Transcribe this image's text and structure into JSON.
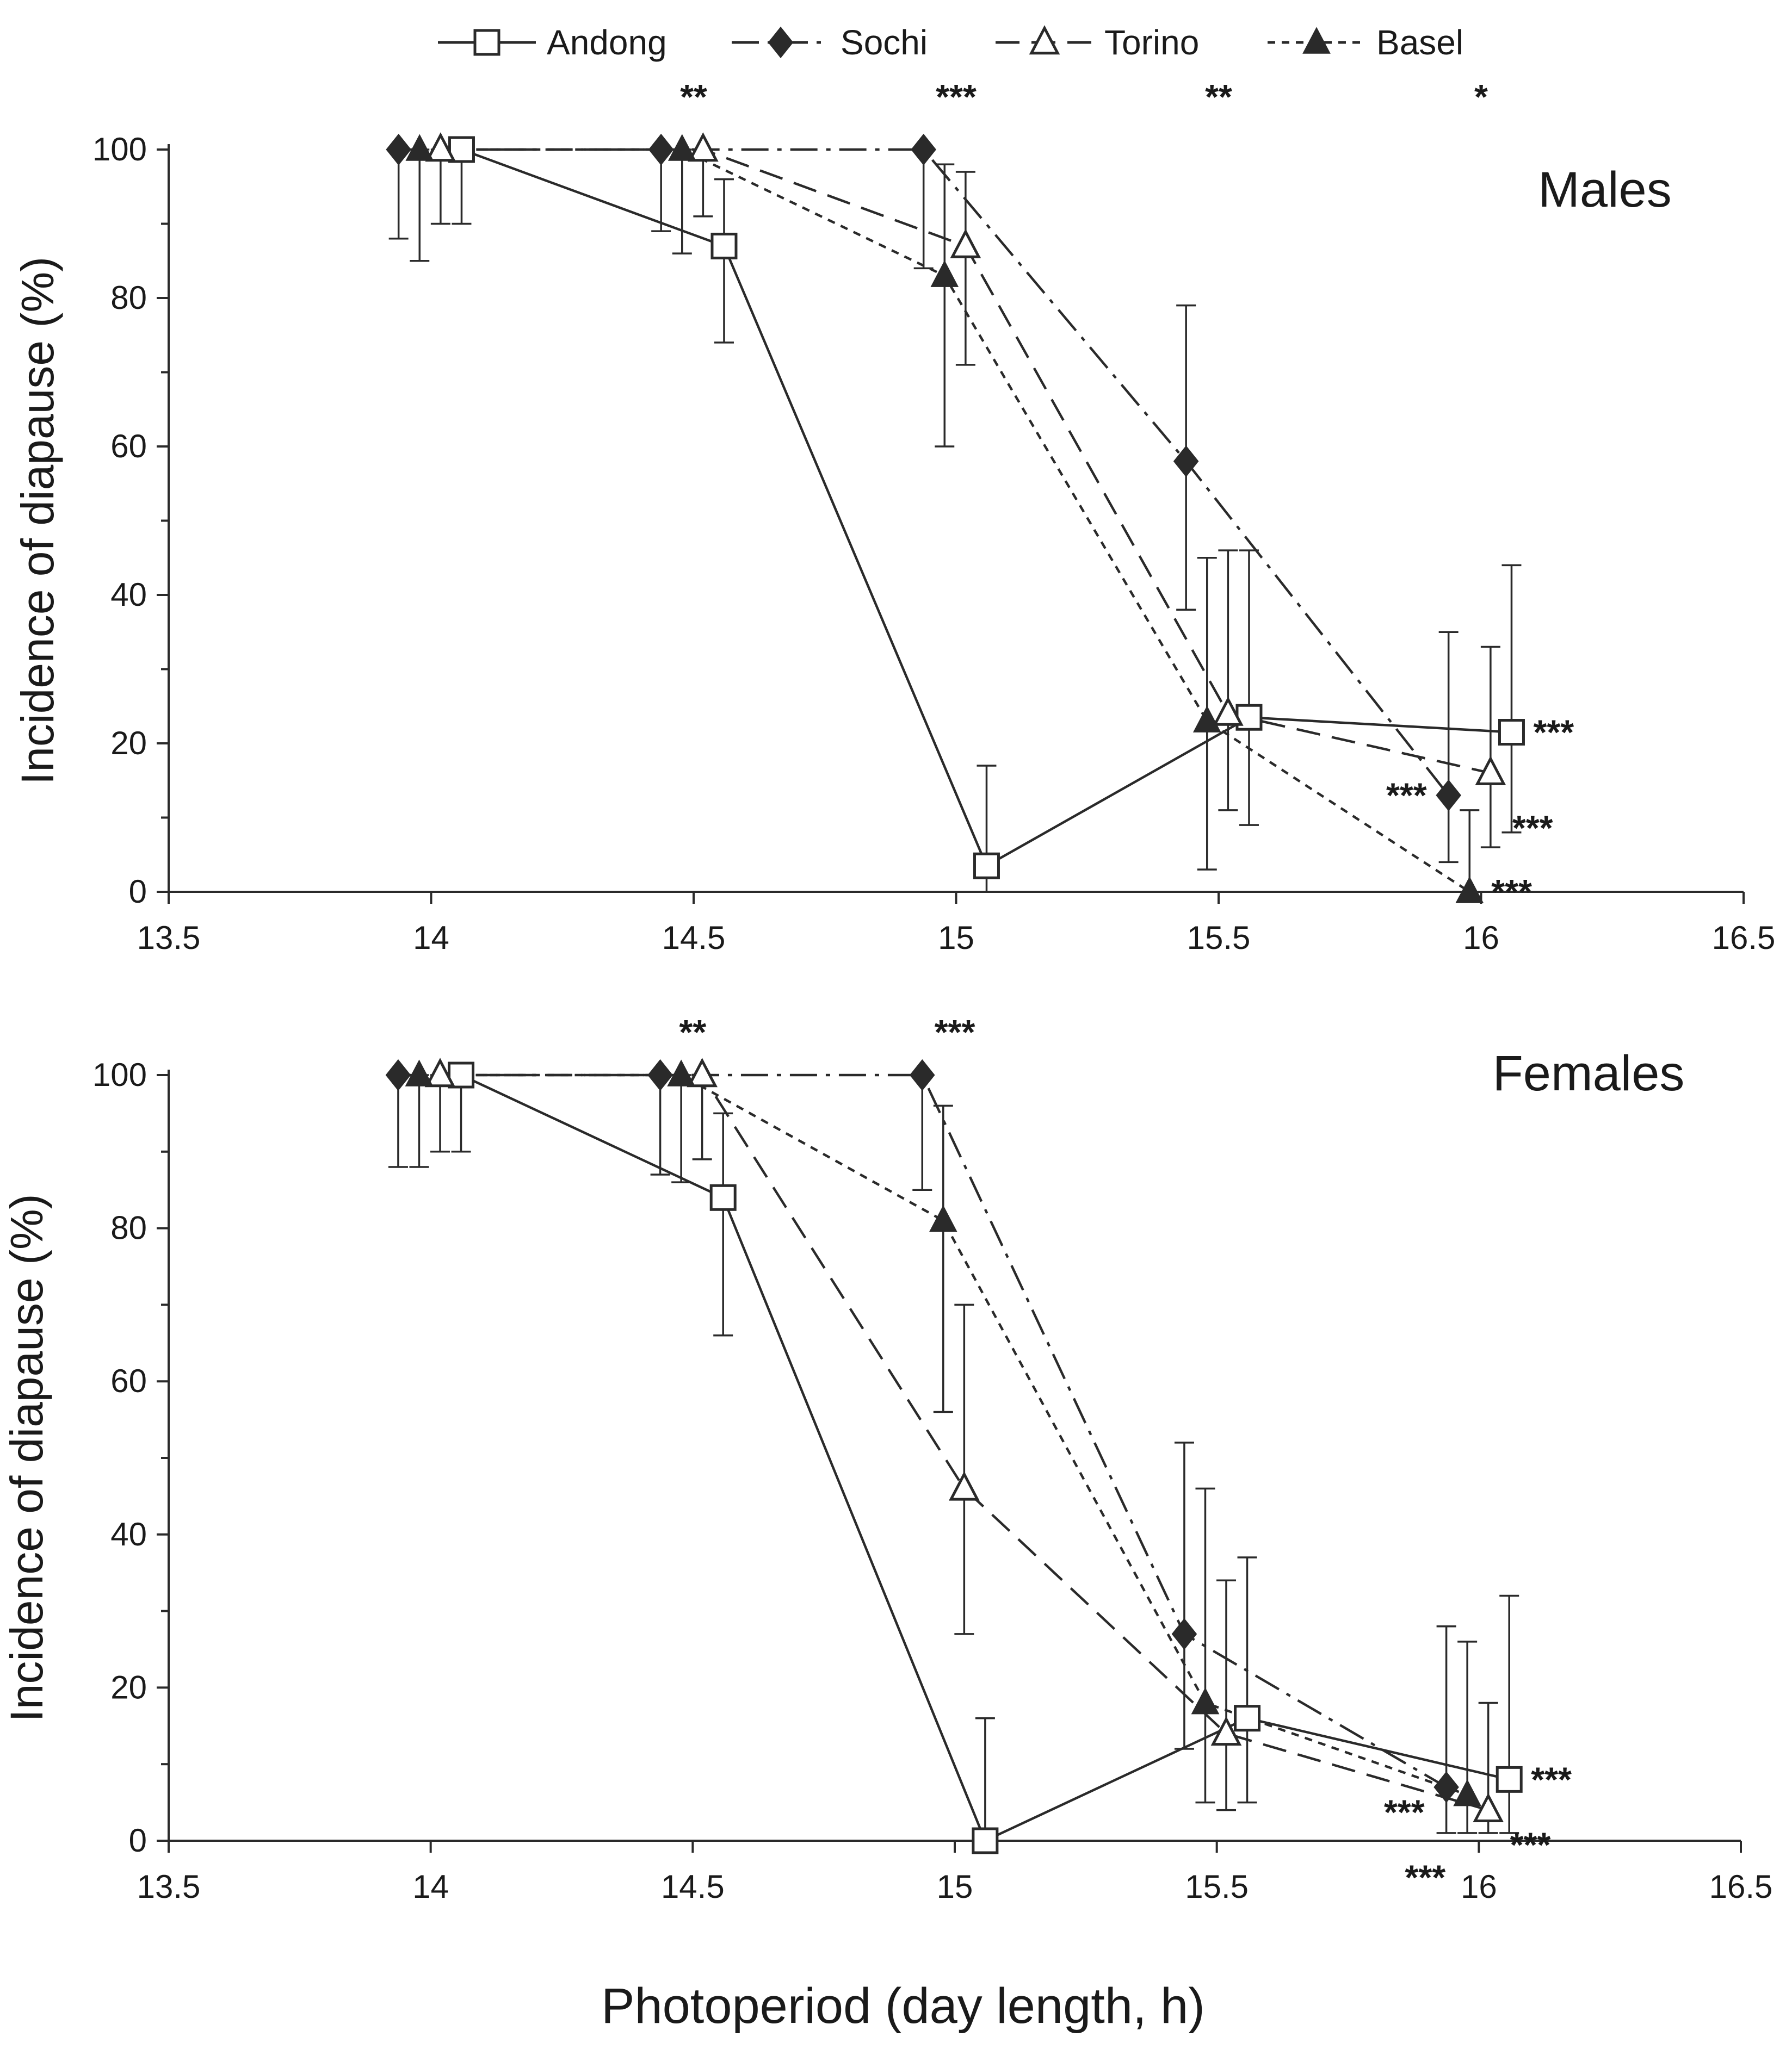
{
  "figure": {
    "xlabel": "Photoperiod (day length, h)"
  },
  "legend": [
    {
      "name": "Andong",
      "marker": "open-square",
      "dash": "solid"
    },
    {
      "name": "Sochi",
      "marker": "filled-diamond",
      "dash": "dashdot"
    },
    {
      "name": "Torino",
      "marker": "open-triangle",
      "dash": "dashed"
    },
    {
      "name": "Basel",
      "marker": "filled-triangle",
      "dash": "dotted"
    }
  ],
  "chart_data": [
    {
      "type": "line",
      "title": "Males",
      "xlabel": "",
      "ylabel": "Incidence of diapause (%)",
      "xlim": [
        13.5,
        16.5
      ],
      "ylim": [
        0,
        100
      ],
      "xticks": [
        "13.5",
        "14",
        "14.5",
        "15",
        "15.5",
        "16",
        "16.5"
      ],
      "yticks": [
        "0",
        "20",
        "40",
        "60",
        "80",
        "100"
      ],
      "x": [
        14,
        14.5,
        15,
        15.5,
        16
      ],
      "series": [
        {
          "name": "Andong",
          "values": [
            100,
            87,
            3.5,
            23.5,
            21.5
          ],
          "err_low": [
            90,
            74,
            0,
            9,
            8
          ],
          "err_high": [
            100,
            96,
            17,
            46,
            44
          ]
        },
        {
          "name": "Sochi",
          "values": [
            100,
            100,
            100,
            58,
            13
          ],
          "err_low": [
            88,
            89,
            84,
            38,
            4
          ],
          "err_high": [
            100,
            100,
            100,
            79,
            35
          ]
        },
        {
          "name": "Torino",
          "values": [
            100,
            100,
            87,
            24,
            16
          ],
          "err_low": [
            90,
            91,
            71,
            11,
            6
          ],
          "err_high": [
            100,
            100,
            97,
            46,
            33
          ]
        },
        {
          "name": "Basel",
          "values": [
            100,
            100,
            83,
            23,
            0
          ],
          "err_low": [
            85,
            86,
            60,
            3,
            0
          ],
          "err_high": [
            100,
            100,
            98,
            45,
            11
          ]
        }
      ],
      "significance": [
        {
          "x": 14.5,
          "label": "**"
        },
        {
          "x": 15,
          "label": "***"
        },
        {
          "x": 15.5,
          "label": "**"
        },
        {
          "x": 16,
          "label": "*"
        }
      ],
      "point_annotations": [
        {
          "series": "Andong",
          "label": "***",
          "side": "right"
        },
        {
          "series": "Sochi",
          "label": "***",
          "side": "left"
        },
        {
          "series": "Torino",
          "label": "***",
          "side": "right"
        },
        {
          "series": "Basel",
          "label": "***",
          "side": "right"
        }
      ]
    },
    {
      "type": "line",
      "title": "Females",
      "xlabel": "",
      "ylabel": "Incidence of diapause (%)",
      "xlim": [
        13.5,
        16.5
      ],
      "ylim": [
        0,
        100
      ],
      "xticks": [
        "13.5",
        "14",
        "14.5",
        "15",
        "15.5",
        "16",
        "16.5"
      ],
      "yticks": [
        "0",
        "20",
        "40",
        "60",
        "80",
        "100"
      ],
      "x": [
        14,
        14.5,
        15,
        15.5,
        16
      ],
      "series": [
        {
          "name": "Andong",
          "values": [
            100,
            84,
            0,
            16,
            8
          ],
          "err_low": [
            90,
            66,
            0,
            5,
            1
          ],
          "err_high": [
            100,
            95,
            16,
            37,
            32
          ]
        },
        {
          "name": "Sochi",
          "values": [
            100,
            100,
            100,
            27,
            7
          ],
          "err_low": [
            88,
            87,
            85,
            12,
            1
          ],
          "err_high": [
            100,
            100,
            100,
            52,
            28
          ]
        },
        {
          "name": "Torino",
          "values": [
            100,
            100,
            46,
            14,
            4
          ],
          "err_low": [
            90,
            89,
            27,
            4,
            1
          ],
          "err_high": [
            100,
            100,
            70,
            34,
            18
          ]
        },
        {
          "name": "Basel",
          "values": [
            100,
            100,
            81,
            18,
            6
          ],
          "err_low": [
            88,
            86,
            56,
            5,
            1
          ],
          "err_high": [
            100,
            100,
            96,
            46,
            26
          ]
        }
      ],
      "significance": [
        {
          "x": 14.5,
          "label": "**"
        },
        {
          "x": 15,
          "label": "***"
        }
      ],
      "point_annotations": [
        {
          "series": "Andong",
          "label": "***",
          "side": "right"
        },
        {
          "series": "Sochi",
          "label": "***",
          "side": "left"
        },
        {
          "series": "Torino",
          "label": "***",
          "side": "right"
        },
        {
          "series": "Basel",
          "label": "***",
          "side": "left"
        }
      ]
    }
  ]
}
